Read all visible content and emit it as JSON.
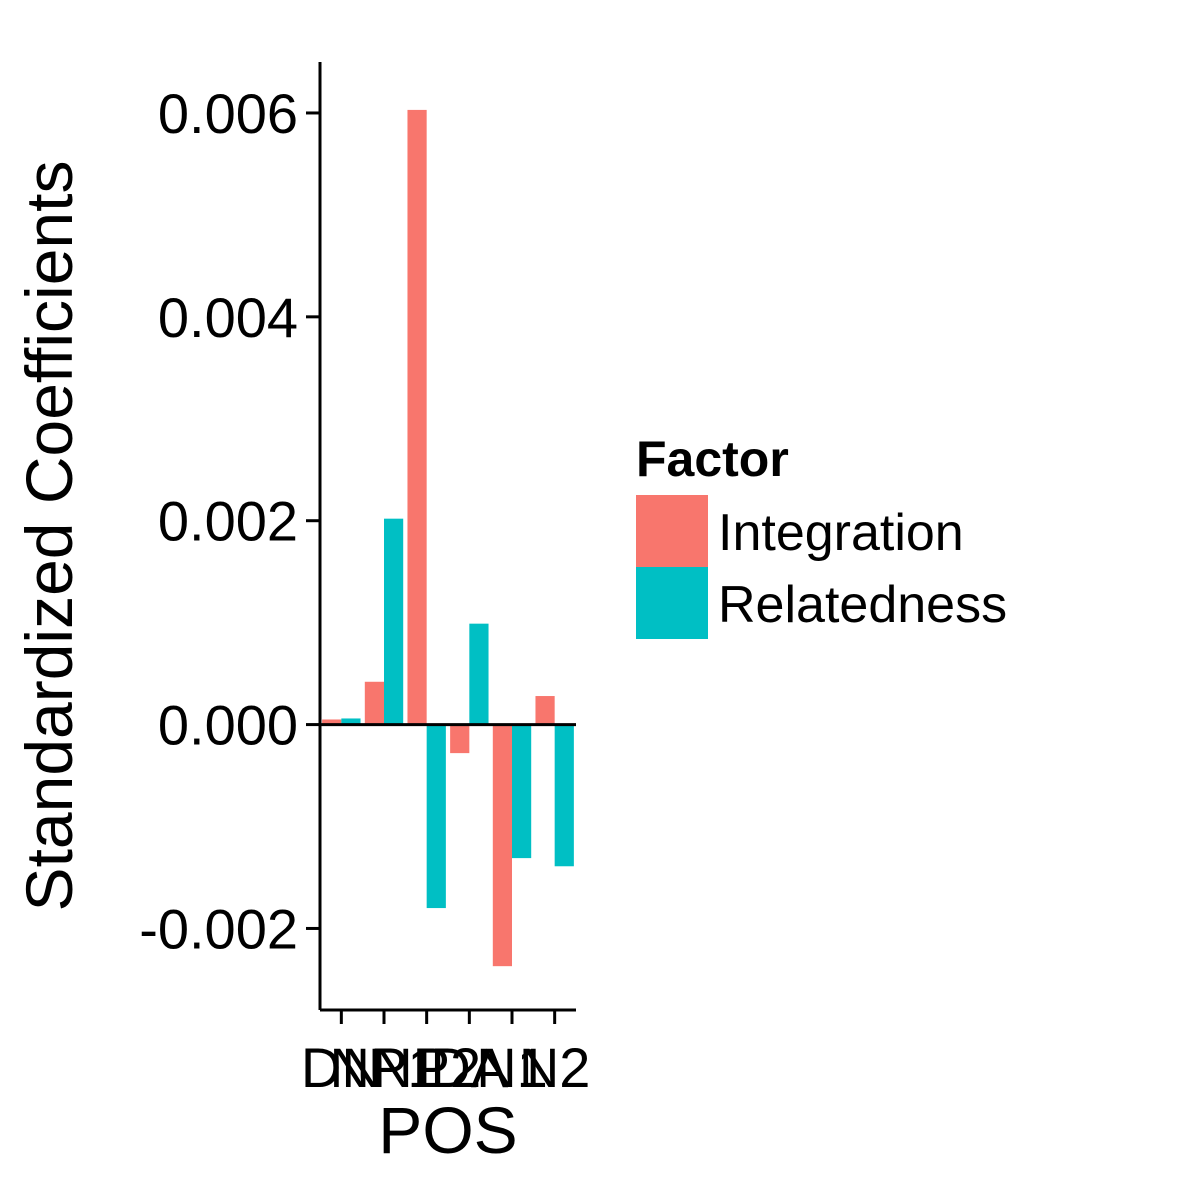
{
  "chart_data": {
    "type": "bar",
    "xlabel": "POS",
    "ylabel": "Standardized Coefficients",
    "categories": [
      "DN",
      "NP1",
      "NP2",
      "DA",
      "N1",
      "N2"
    ],
    "ylim": [
      -0.0028,
      0.0065
    ],
    "yticks": [
      -0.002,
      0.0,
      0.002,
      0.004,
      0.006
    ],
    "ytick_labels": [
      "-0.002",
      "0.000",
      "0.002",
      "0.004",
      "0.006"
    ],
    "zero_line": true,
    "grid": false,
    "legend": {
      "title": "Factor",
      "position": "right"
    },
    "series": [
      {
        "name": "Integration",
        "color": "#F8766D",
        "values": [
          5e-05,
          0.00042,
          0.00603,
          -0.00028,
          -0.00237,
          0.00028
        ]
      },
      {
        "name": "Relatedness",
        "color": "#00BFC4",
        "values": [
          6e-05,
          0.00202,
          -0.0018,
          0.00099,
          -0.00131,
          -0.00139
        ]
      }
    ]
  }
}
